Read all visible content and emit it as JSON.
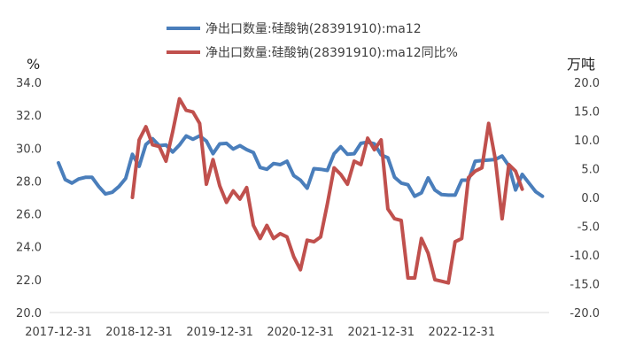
{
  "chart_data": {
    "type": "line",
    "title": "",
    "left_unit": "%",
    "right_unit": "万吨",
    "left_ylim": [
      20,
      34
    ],
    "left_yticks": [
      "20.0",
      "22.0",
      "24.0",
      "26.0",
      "28.0",
      "30.0",
      "32.0",
      "34.0"
    ],
    "right_ylim": [
      -20,
      20
    ],
    "right_yticks": [
      "-20.0",
      "-15.0",
      "-10.0",
      "-5.0",
      "0.0",
      "5.0",
      "10.0",
      "15.0",
      "20.0"
    ],
    "x_tick_labels": [
      "2017-12-31",
      "2018-12-31",
      "2019-12-31",
      "2020-12-31",
      "2021-12-31",
      "2022-12-31"
    ],
    "x_tick_index": [
      0,
      12,
      24,
      36,
      48,
      60
    ],
    "x_count": 74,
    "grid": "none",
    "series": [
      {
        "name": "净出口数量:硅酸钠(28391910):ma12",
        "axis": "right",
        "color": "#4A7EBB",
        "start_index": 0,
        "values": [
          6.0,
          3.1,
          2.5,
          3.2,
          3.5,
          3.5,
          1.9,
          0.6,
          0.9,
          1.9,
          3.3,
          7.5,
          5.4,
          9.2,
          10.2,
          9.0,
          9.1,
          7.9,
          9.1,
          10.7,
          10.1,
          10.7,
          9.8,
          7.6,
          9.3,
          9.4,
          8.4,
          9.0,
          8.3,
          7.8,
          5.2,
          4.9,
          5.9,
          5.7,
          6.3,
          3.8,
          3.0,
          1.6,
          5.0,
          4.9,
          4.7,
          7.6,
          8.8,
          7.5,
          7.6,
          9.4,
          9.6,
          9.3,
          7.4,
          6.9,
          3.5,
          2.5,
          2.2,
          0.2,
          0.8,
          3.4,
          1.3,
          0.5,
          0.4,
          0.4,
          3.0,
          3.0,
          6.3,
          6.4,
          6.5,
          6.6,
          7.2,
          5.5,
          1.3,
          4.0,
          2.5,
          1.0,
          0.2
        ]
      },
      {
        "name": "净出口数量:硅酸钠(28391910):ma12同比%",
        "axis": "left",
        "color": "#C0504D",
        "start_index": 11,
        "values": [
          27.0,
          30.5,
          31.3,
          30.2,
          30.1,
          29.2,
          31.0,
          33.0,
          32.3,
          32.2,
          31.5,
          27.8,
          29.3,
          27.7,
          26.7,
          27.4,
          26.9,
          27.6,
          25.3,
          24.5,
          25.3,
          24.5,
          24.8,
          24.6,
          23.4,
          22.6,
          24.4,
          24.3,
          24.6,
          26.6,
          28.8,
          28.4,
          27.8,
          29.2,
          29.0,
          30.6,
          29.9,
          30.5,
          26.3,
          25.7,
          25.6,
          22.1,
          22.1,
          24.5,
          23.6,
          22.0,
          21.9,
          21.8,
          24.3,
          24.5,
          28.2,
          28.6,
          28.8,
          31.5,
          29.3,
          25.7,
          29.0,
          28.6,
          27.5
        ]
      }
    ]
  }
}
